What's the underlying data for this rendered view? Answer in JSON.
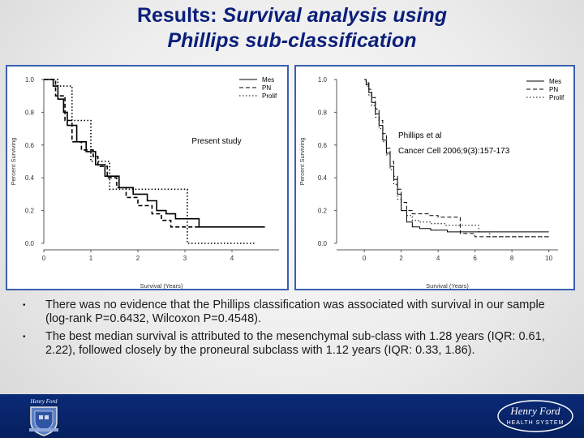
{
  "slide": {
    "title_line1_plain": "Results: ",
    "title_line1_italic": "Survival analysis using",
    "title_line2_italic": "Phillips sub-classification",
    "bullets": [
      "There was no evidence that the Phillips classification was associated with survival in our sample (log-rank P=0.6432, Wilcoxon P=0.4548).",
      "The best median survival is attributed to the mesenchymal sub-class with 1.28 years (IQR: 0.61, 2.22), followed closely by the proneural subclass with 1.12 years (IQR: 0.33, 1.86)."
    ],
    "bullet_glyph": "•"
  },
  "footer": {
    "left_logo_text": "Henry Ford",
    "right_logo_line1": "Henry Ford",
    "right_logo_line2": "HEALTH SYSTEM"
  },
  "chart_data": [
    {
      "type": "line",
      "annotation": "Present study",
      "xlabel": "Survival (Years)",
      "ylabel": "Percent Surviving",
      "xlim": [
        0,
        5
      ],
      "ylim": [
        0,
        1
      ],
      "xticks": [
        "0",
        "1",
        "2",
        "3",
        "4"
      ],
      "yticks": [
        "0.0",
        "0.2",
        "0.4",
        "0.6",
        "0.8",
        "1.0"
      ],
      "legend_position": "top-right",
      "series": [
        {
          "name": "Mes",
          "style": "solid",
          "x": [
            0,
            0.2,
            0.3,
            0.42,
            0.5,
            0.7,
            0.9,
            1.1,
            1.3,
            1.6,
            1.9,
            2.2,
            2.4,
            2.6,
            2.8,
            3.3,
            4.7
          ],
          "y": [
            1.0,
            0.96,
            0.88,
            0.8,
            0.72,
            0.62,
            0.56,
            0.48,
            0.41,
            0.34,
            0.3,
            0.26,
            0.2,
            0.18,
            0.15,
            0.1,
            0.1
          ]
        },
        {
          "name": "PN",
          "style": "dashed",
          "x": [
            0,
            0.25,
            0.45,
            0.6,
            0.8,
            1.05,
            1.15,
            1.35,
            1.55,
            1.75,
            2.0,
            2.3,
            2.5,
            2.7,
            3.3
          ],
          "y": [
            1.0,
            0.9,
            0.75,
            0.62,
            0.57,
            0.53,
            0.47,
            0.4,
            0.34,
            0.28,
            0.23,
            0.18,
            0.14,
            0.1,
            0.1
          ]
        },
        {
          "name": "Prolif",
          "style": "dotted",
          "x": [
            0,
            0.3,
            0.6,
            1.0,
            1.4,
            2.2,
            3.05,
            4.5
          ],
          "y": [
            1.0,
            0.96,
            0.75,
            0.5,
            0.33,
            0.33,
            0.0,
            0.0
          ]
        }
      ]
    },
    {
      "type": "line",
      "annotation_line1": "Phillips et al",
      "annotation_line2": "Cancer Cell 2006;9(3):157-173",
      "xlabel": "Survival (Years)",
      "ylabel": "Percent Surviving",
      "xlim": [
        -1.5,
        10.5
      ],
      "ylim": [
        0,
        1
      ],
      "xticks": [
        "0",
        "2",
        "4",
        "6",
        "8",
        "10"
      ],
      "yticks": [
        "0.0",
        "0.2",
        "0.4",
        "0.6",
        "0.8",
        "1.0"
      ],
      "legend_position": "top-right",
      "series": [
        {
          "name": "Mes",
          "style": "solid",
          "x": [
            0,
            0.1,
            0.25,
            0.4,
            0.6,
            0.8,
            1.0,
            1.2,
            1.4,
            1.6,
            1.8,
            2.0,
            2.3,
            2.6,
            3.0,
            3.6,
            4.5,
            6.0,
            8.0,
            9.0,
            10.0
          ],
          "y": [
            1.0,
            0.97,
            0.92,
            0.86,
            0.79,
            0.72,
            0.63,
            0.55,
            0.47,
            0.39,
            0.3,
            0.2,
            0.13,
            0.1,
            0.09,
            0.08,
            0.07,
            0.07,
            0.07,
            0.07,
            0.07
          ]
        },
        {
          "name": "PN",
          "style": "dashed",
          "x": [
            0,
            0.1,
            0.25,
            0.4,
            0.6,
            0.8,
            1.0,
            1.2,
            1.4,
            1.6,
            1.8,
            2.0,
            2.3,
            2.6,
            3.0,
            3.5,
            4.0,
            4.6,
            5.2,
            6.0,
            7.5,
            9.0,
            10.0
          ],
          "y": [
            1.0,
            0.98,
            0.94,
            0.89,
            0.82,
            0.75,
            0.67,
            0.58,
            0.5,
            0.41,
            0.33,
            0.25,
            0.2,
            0.18,
            0.18,
            0.17,
            0.16,
            0.16,
            0.06,
            0.04,
            0.04,
            0.04,
            0.04
          ]
        },
        {
          "name": "Prolif",
          "style": "dotted",
          "x": [
            0,
            0.1,
            0.25,
            0.4,
            0.6,
            0.8,
            1.0,
            1.2,
            1.4,
            1.6,
            1.8,
            2.0,
            2.3,
            2.6,
            3.0,
            3.6,
            4.4,
            5.5,
            6.2,
            6.8,
            10.0
          ],
          "y": [
            1.0,
            0.96,
            0.9,
            0.84,
            0.77,
            0.7,
            0.62,
            0.54,
            0.45,
            0.36,
            0.27,
            0.2,
            0.17,
            0.14,
            0.13,
            0.12,
            0.11,
            0.11,
            0.07,
            0.04,
            0.04
          ]
        }
      ]
    }
  ]
}
